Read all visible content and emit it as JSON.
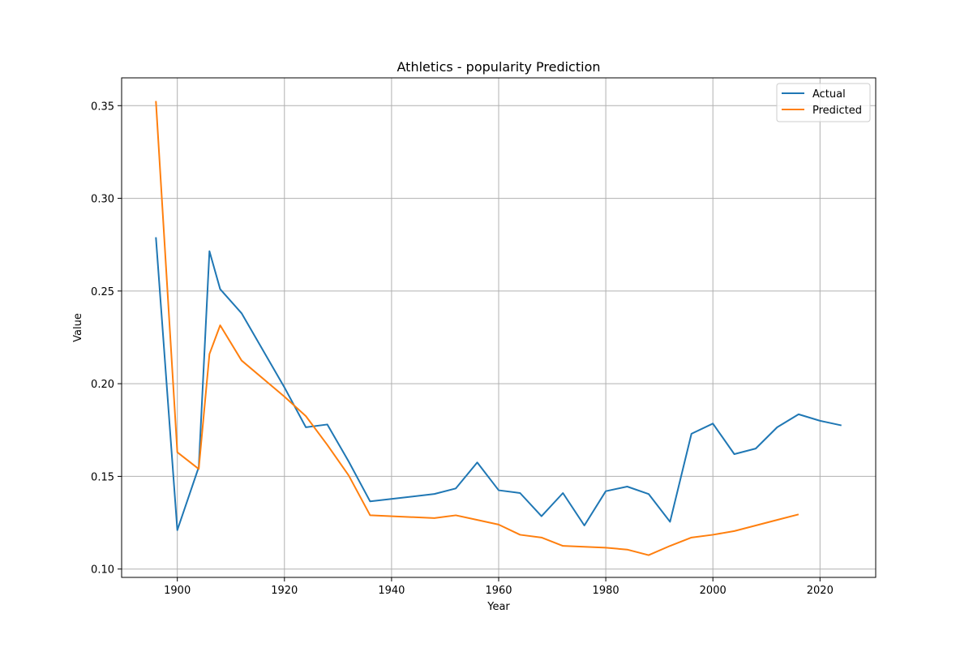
{
  "chart_data": {
    "type": "line",
    "title": "Athletics - popularity Prediction",
    "xlabel": "Year",
    "ylabel": "Value",
    "xlim": [
      1889.6,
      2030.4
    ],
    "ylim": [
      0.0955,
      0.365
    ],
    "xticks": [
      1900,
      1920,
      1940,
      1960,
      1980,
      2000,
      2020
    ],
    "xtick_labels": [
      "1900",
      "1920",
      "1940",
      "1960",
      "1980",
      "2000",
      "2020"
    ],
    "yticks": [
      0.1,
      0.15,
      0.2,
      0.25,
      0.3,
      0.35
    ],
    "ytick_labels": [
      "0.10",
      "0.15",
      "0.20",
      "0.25",
      "0.30",
      "0.35"
    ],
    "grid": true,
    "legend_position": "top-right",
    "series": [
      {
        "name": "Actual",
        "color": "#1f77b4",
        "x": [
          1896,
          1900,
          1904,
          1906,
          1908,
          1912,
          1920,
          1924,
          1928,
          1932,
          1936,
          1948,
          1952,
          1956,
          1960,
          1964,
          1968,
          1972,
          1976,
          1980,
          1984,
          1988,
          1992,
          1996,
          2000,
          2004,
          2008,
          2012,
          2016,
          2020,
          2024
        ],
        "y": [
          0.279,
          0.121,
          0.155,
          0.2715,
          0.251,
          0.238,
          0.198,
          0.1765,
          0.178,
          0.158,
          0.1365,
          0.1405,
          0.1435,
          0.1575,
          0.1425,
          0.141,
          0.1285,
          0.141,
          0.1235,
          0.142,
          0.1445,
          0.1405,
          0.1255,
          0.173,
          0.1785,
          0.162,
          0.165,
          0.1765,
          0.1835,
          0.18,
          0.1775
        ]
      },
      {
        "name": "Predicted",
        "color": "#ff7f0e",
        "x": [
          1896,
          1900,
          1904,
          1906,
          1908,
          1912,
          1920,
          1924,
          1928,
          1932,
          1936,
          1948,
          1952,
          1956,
          1960,
          1964,
          1968,
          1972,
          1976,
          1980,
          1984,
          1988,
          1992,
          1996,
          2000,
          2004,
          2008,
          2012,
          2016
        ],
        "y": [
          0.3525,
          0.163,
          0.154,
          0.216,
          0.2315,
          0.2125,
          0.193,
          0.1825,
          0.167,
          0.1505,
          0.129,
          0.1275,
          0.129,
          0.1265,
          0.124,
          0.1185,
          0.117,
          0.1125,
          0.112,
          0.1115,
          0.1105,
          0.1075,
          0.1125,
          0.117,
          0.1185,
          0.1205,
          0.1235,
          0.1265,
          0.1295
        ]
      }
    ]
  }
}
